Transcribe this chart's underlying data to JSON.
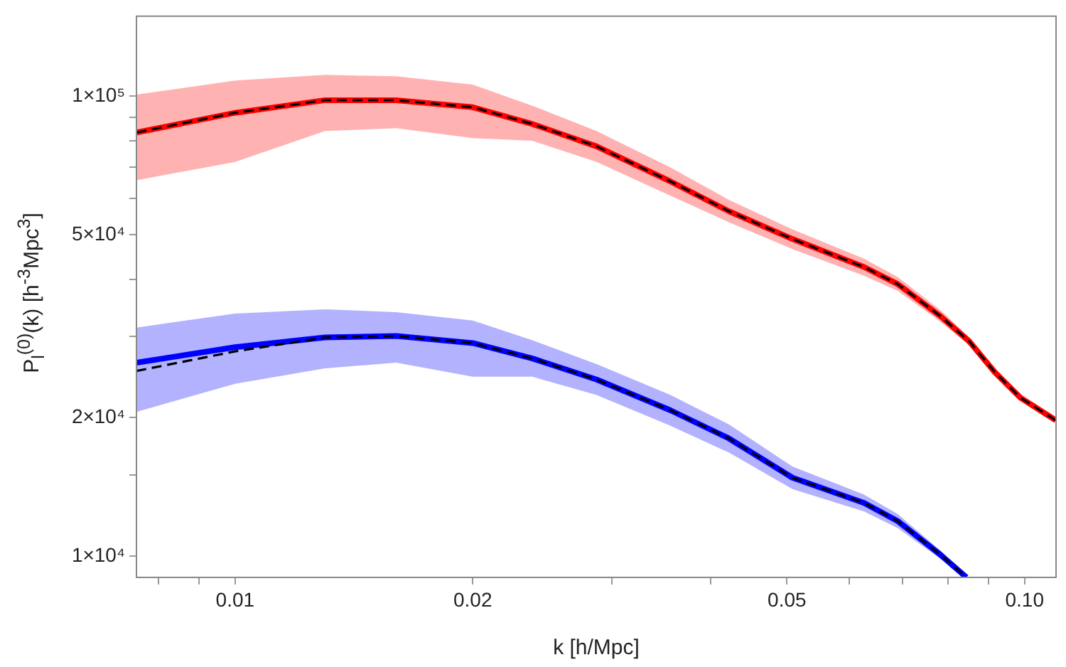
{
  "chart_data": {
    "type": "line",
    "xlabel": "k [h/Mpc]",
    "ylabel": "P$_{l}$$^{(0)}$(k) [h$^{-3}$Mpc$^{3}$]",
    "log": "xy",
    "grid": false,
    "legend": false,
    "marker": "none",
    "x": [
      0.0075,
      0.01,
      0.013,
      0.016,
      0.02,
      0.0238,
      0.0287,
      0.0356,
      0.0422,
      0.0508,
      0.0626,
      0.0691,
      0.0783,
      0.0851,
      0.0917,
      0.0988,
      0.1095
    ],
    "xlim": [
      0.0075,
      0.1096
    ],
    "ylim": [
      9000,
      149000
    ],
    "xticks": [
      {
        "value": 0.008,
        "label": null
      },
      {
        "value": 0.009,
        "label": null
      },
      0.01,
      0.02,
      {
        "value": 0.03,
        "label": null
      },
      {
        "value": 0.04,
        "label": null
      },
      0.05,
      {
        "value": 0.06,
        "label": null
      },
      {
        "value": 0.07,
        "label": null
      },
      {
        "value": 0.08,
        "label": null
      },
      {
        "value": 0.09,
        "label": null
      },
      {
        "value": 0.1,
        "label": "0.10"
      }
    ],
    "yticks": [
      {
        "value": 10000,
        "label": "1×10⁴"
      },
      {
        "value": 15000,
        "label": null
      },
      {
        "value": 20000,
        "label": "2×10⁴"
      },
      {
        "value": 30000,
        "label": null
      },
      {
        "value": 40000,
        "label": null
      },
      {
        "value": 50000,
        "label": "5×10⁴"
      },
      {
        "value": 60000,
        "label": null
      },
      {
        "value": 70000,
        "label": null
      },
      {
        "value": 80000,
        "label": null
      },
      {
        "value": 90000,
        "label": null
      },
      {
        "value": 100000,
        "label": "1×10⁵"
      }
    ],
    "series": [
      {
        "color": "#ff0000",
        "values": [
          83300,
          91900,
          97900,
          97900,
          94500,
          86900,
          77700,
          65200,
          56200,
          48900,
          42500,
          39000,
          33200,
          29300,
          25100,
          22100,
          19750
        ],
        "lower": [
          65600,
          71900,
          83900,
          85100,
          81000,
          79900,
          71900,
          60700,
          53200,
          46500,
          40700,
          37700,
          32300,
          28700,
          24600,
          21800,
          19600
        ],
        "upper": [
          100700,
          108000,
          111100,
          110300,
          105800,
          95200,
          83900,
          69900,
          59500,
          51300,
          44300,
          40400,
          34200,
          29900,
          25600,
          22400,
          19900
        ]
      },
      {
        "color": "#000000",
        "line_style": "dashed",
        "values": [
          83300,
          91900,
          97900,
          97900,
          94500,
          86900,
          77700,
          65200,
          56200,
          48900,
          42500,
          39000,
          33200,
          29300,
          25100,
          22100,
          19750
        ]
      },
      {
        "color": "#0000ff",
        "x": [
          0.0075,
          0.01,
          0.013,
          0.016,
          0.02,
          0.0238,
          0.0287,
          0.0356,
          0.0422,
          0.0508,
          0.0626,
          0.0691,
          0.0783,
          0.0844
        ],
        "values": [
          26340,
          28470,
          29880,
          30100,
          29060,
          26900,
          24210,
          20760,
          18040,
          14820,
          13060,
          11920,
          10070,
          9000
        ],
        "lower": [
          20600,
          23710,
          25600,
          26340,
          24560,
          24560,
          22410,
          19210,
          16810,
          14000,
          12520,
          11510,
          9860,
          9000
        ],
        "upper": [
          31400,
          33670,
          34400,
          33920,
          32530,
          29480,
          26150,
          22410,
          19350,
          15670,
          13620,
          12350,
          10280,
          9000
        ]
      },
      {
        "color": "#000000",
        "line_style": "dashed",
        "x": [
          0.0075,
          0.01,
          0.013,
          0.016,
          0.02,
          0.0238,
          0.0287,
          0.0356,
          0.0422,
          0.0508,
          0.0626,
          0.0691,
          0.0783,
          0.0844
        ],
        "values": [
          25270,
          27870,
          29880,
          30100,
          29060,
          26900,
          24210,
          20760,
          18040,
          14820,
          13060,
          11920,
          10070,
          9000
        ]
      }
    ]
  }
}
